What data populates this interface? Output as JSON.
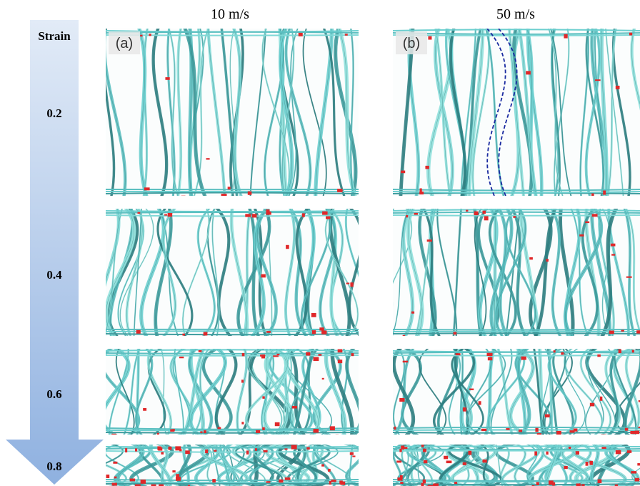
{
  "strain_axis": {
    "title": "Strain",
    "labels": [
      "0.2",
      "0.4",
      "0.6",
      "0.8"
    ]
  },
  "columns": [
    "10 m/s",
    "50 m/s"
  ],
  "panel_labels": [
    "(a)",
    "(b)"
  ]
}
